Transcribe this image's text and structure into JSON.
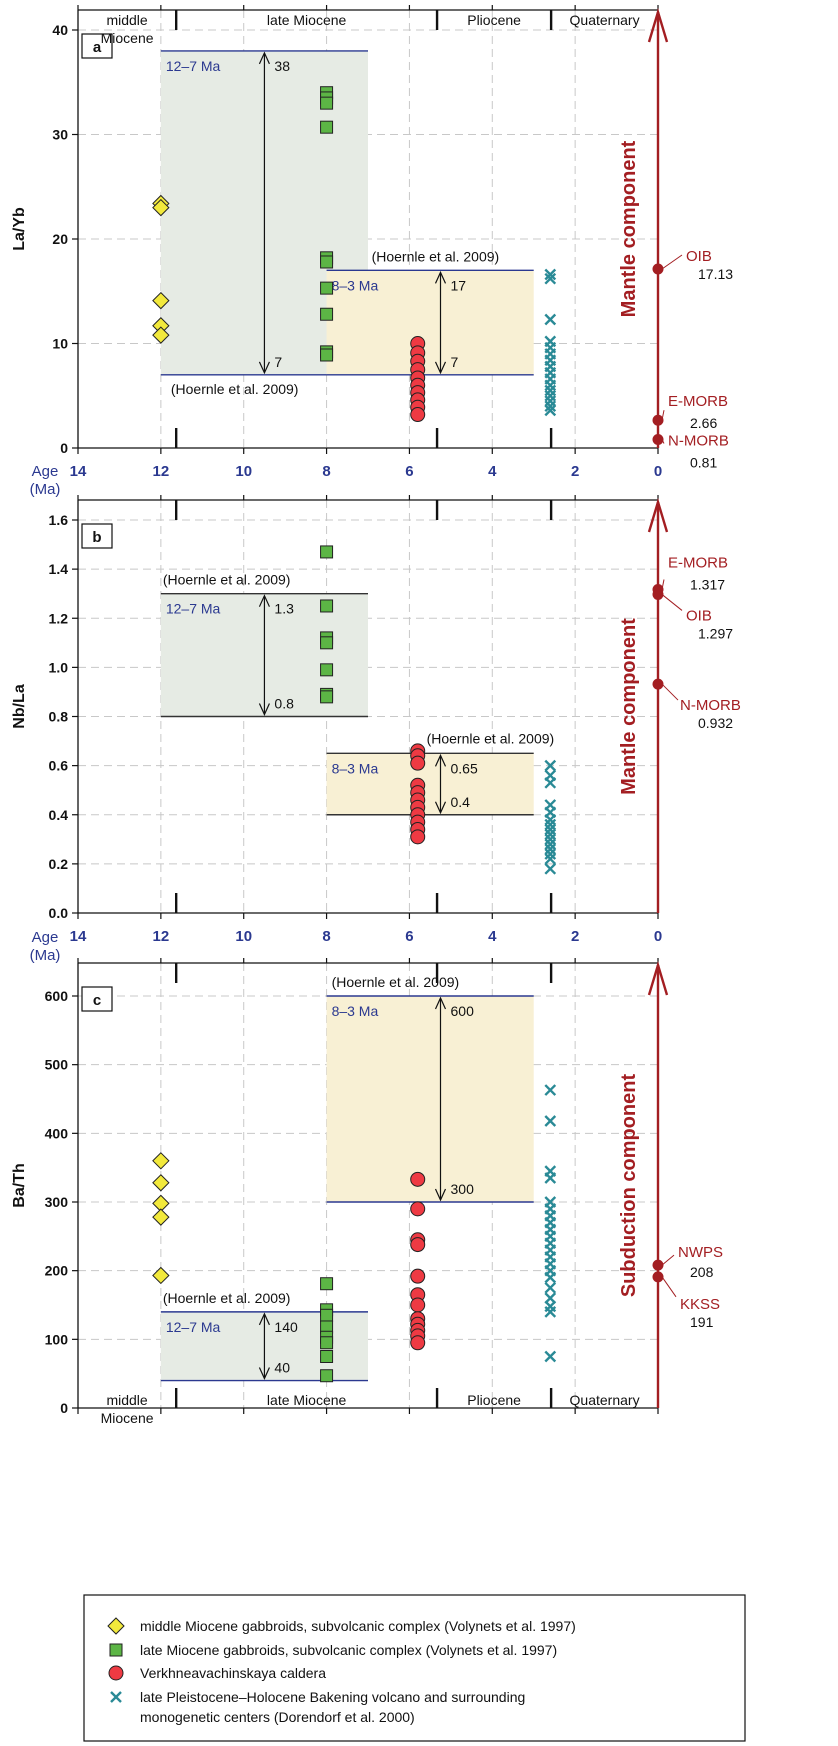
{
  "colors": {
    "axis_blue": "#2b3990",
    "dark_red": "#a31e22",
    "green_box": "#e6ebe4",
    "yellow_box": "#f8f0d4",
    "diamond": "#f2e93c",
    "square": "#5cb545",
    "circle": "#ee3a43",
    "cross": "#2a8a96",
    "grid": "#c8c8c8"
  },
  "epochs_top": [
    "middle\nMiocene",
    "late Miocene",
    "Pliocene",
    "Quaternary"
  ],
  "epochs_bottom": [
    "middle\nMiocene",
    "late Miocene",
    "Pliocene",
    "Quaternary"
  ],
  "age_label_line1": "Age",
  "age_label_line2": "(Ma)",
  "x_ticks": [
    "14",
    "12",
    "10",
    "8",
    "6",
    "4",
    "2",
    "0"
  ],
  "chart_data": [
    {
      "type": "scatter",
      "panel": "a",
      "ylabel": "La/Yb",
      "xlim": [
        14,
        0
      ],
      "ylim": [
        0,
        40
      ],
      "y_ticks": [
        0,
        10,
        20,
        30,
        40
      ],
      "y_tick_labels": [
        "0",
        "10",
        "20",
        "30",
        "40"
      ],
      "range_boxes": [
        {
          "label": "12–7 Ma",
          "x_range": [
            12,
            7
          ],
          "y_range": [
            7,
            38
          ],
          "fill": "green",
          "ref": "(Hoernle et al.  2009)",
          "low": "7",
          "high": "38"
        },
        {
          "label": "8–3 Ma",
          "x_range": [
            8,
            3
          ],
          "y_range": [
            7,
            17
          ],
          "fill": "yellow",
          "ref": "(Hoernle et al.  2009)",
          "low": "7",
          "high": "17"
        }
      ],
      "reference_points": [
        {
          "name": "OIB",
          "value_label": "17.13",
          "y": 17.13
        },
        {
          "name": "E-MORB",
          "value_label": "2.66",
          "y": 2.66
        },
        {
          "name": "N-MORB",
          "value_label": "0.81",
          "y": 0.81
        }
      ],
      "component_label": "Mantle component",
      "series": [
        {
          "marker": "diamond",
          "x": 12,
          "y": [
            23.4,
            23.0,
            14.1,
            11.7,
            10.8
          ]
        },
        {
          "marker": "square",
          "x": 8,
          "y": [
            34.0,
            33.5,
            33.0,
            30.7,
            18.2,
            17.8,
            15.3,
            12.8,
            9.2,
            8.9
          ]
        },
        {
          "marker": "circle",
          "x": 5.8,
          "y": [
            10.0,
            9.1,
            8.3,
            7.5,
            6.7,
            6.0,
            5.3,
            4.6,
            3.9,
            3.2
          ]
        },
        {
          "marker": "cross",
          "x": 2.6,
          "y": [
            16.6,
            16.2,
            12.3,
            10.2,
            9.6,
            9.0,
            8.4,
            7.8,
            7.2,
            6.6,
            6.0,
            5.5,
            5.0,
            4.5,
            4.0,
            3.6
          ]
        }
      ]
    },
    {
      "type": "scatter",
      "panel": "b",
      "ylabel": "Nb/La",
      "xlim": [
        14,
        0
      ],
      "ylim": [
        0,
        1.6
      ],
      "y_ticks": [
        0,
        0.2,
        0.4,
        0.6,
        0.8,
        1.0,
        1.2,
        1.4,
        1.6
      ],
      "y_tick_labels": [
        "0.0",
        "0.2",
        "0.4",
        "0.6",
        "0.8",
        "1.0",
        "1.2",
        "1.4",
        "1.6"
      ],
      "range_boxes": [
        {
          "label": "12–7 Ma",
          "x_range": [
            12,
            7
          ],
          "y_range": [
            0.8,
            1.3
          ],
          "fill": "green",
          "ref": "(Hoernle et al.  2009)",
          "low": "0.8",
          "high": "1.3"
        },
        {
          "label": "8–3 Ma",
          "x_range": [
            8,
            3
          ],
          "y_range": [
            0.4,
            0.65
          ],
          "fill": "yellow",
          "ref": "(Hoernle et al.  2009)",
          "low": "0.4",
          "high": "0.65"
        }
      ],
      "reference_points": [
        {
          "name": "E-MORB",
          "value_label": "1.317",
          "y": 1.317
        },
        {
          "name": "OIB",
          "value_label": "1.297",
          "y": 1.297
        },
        {
          "name": "N-MORB",
          "value_label": "0.932",
          "y": 0.932
        }
      ],
      "component_label": "Mantle component",
      "series": [
        {
          "marker": "square",
          "x": 8,
          "y": [
            1.47,
            1.25,
            1.12,
            1.1,
            0.99,
            0.89,
            0.88
          ]
        },
        {
          "marker": "circle",
          "x": 5.8,
          "y": [
            0.66,
            0.64,
            0.61,
            0.52,
            0.49,
            0.46,
            0.43,
            0.4,
            0.37,
            0.34,
            0.31
          ]
        },
        {
          "marker": "cross",
          "x": 2.6,
          "y": [
            0.6,
            0.56,
            0.53,
            0.44,
            0.41,
            0.38,
            0.36,
            0.34,
            0.32,
            0.3,
            0.28,
            0.26,
            0.24,
            0.22,
            0.18
          ]
        }
      ]
    },
    {
      "type": "scatter",
      "panel": "c",
      "ylabel": "Ba/Th",
      "xlim": [
        14,
        0
      ],
      "ylim": [
        0,
        600
      ],
      "y_ticks": [
        0,
        100,
        200,
        300,
        400,
        500,
        600
      ],
      "y_tick_labels": [
        "0",
        "100",
        "200",
        "300",
        "400",
        "500",
        "600"
      ],
      "range_boxes": [
        {
          "label": "8–3 Ma",
          "x_range": [
            8,
            3
          ],
          "y_range": [
            300,
            600
          ],
          "fill": "yellow",
          "ref": "(Hoernle et al.  2009)",
          "low": "300",
          "high": "600"
        },
        {
          "label": "12–7 Ma",
          "x_range": [
            12,
            7
          ],
          "y_range": [
            40,
            140
          ],
          "fill": "green",
          "ref": "(Hoernle et al.  2009)",
          "low": "40",
          "high": "140"
        }
      ],
      "reference_points": [
        {
          "name": "NWPS",
          "value_label": "208",
          "y": 208
        },
        {
          "name": "KKSS",
          "value_label": "191",
          "y": 191
        }
      ],
      "component_label": "Subduction component",
      "series": [
        {
          "marker": "diamond",
          "x": 12,
          "y": [
            360,
            328,
            298,
            278,
            193
          ]
        },
        {
          "marker": "square",
          "x": 8,
          "y": [
            181,
            143,
            135,
            118,
            103,
            95,
            75,
            47
          ]
        },
        {
          "marker": "circle",
          "x": 5.8,
          "y": [
            333,
            290,
            245,
            238,
            192,
            165,
            150,
            130,
            122,
            113,
            105,
            95
          ]
        },
        {
          "marker": "cross",
          "x": 2.6,
          "y": [
            463,
            418,
            345,
            335,
            300,
            290,
            280,
            270,
            260,
            250,
            240,
            230,
            220,
            210,
            200,
            190,
            175,
            160,
            148,
            140,
            75
          ]
        }
      ]
    }
  ],
  "legend": [
    {
      "marker": "diamond",
      "text": "middle Miocene gabbroids, subvolcanic complex (Volynets et al. 1997)"
    },
    {
      "marker": "square",
      "text": "late Miocene gabbroids, subvolcanic complex (Volynets et al. 1997)"
    },
    {
      "marker": "circle",
      "text": "Verkhneavachinskaya caldera"
    },
    {
      "marker": "cross",
      "text": "late Pleistocene–Holocene Bakening volcano and surrounding\nmonogenetic centers (Dorendorf et al. 2000)"
    }
  ]
}
